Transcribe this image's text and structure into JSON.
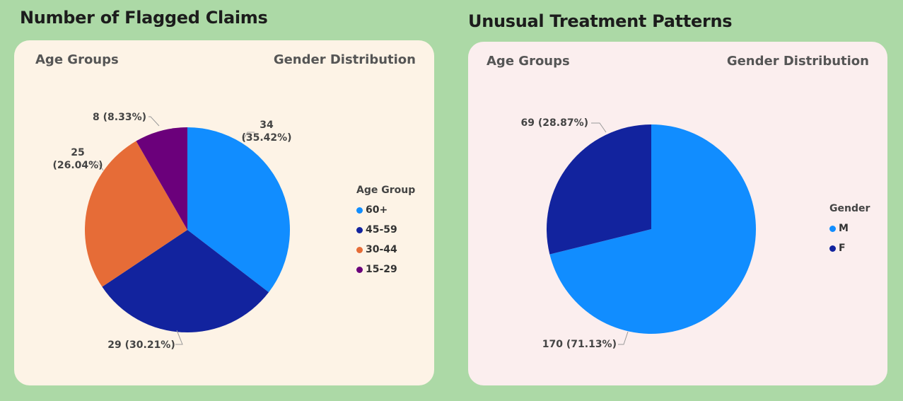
{
  "left_panel": {
    "title": "Number of Flagged Claims",
    "tabs": [
      "Age Groups",
      "Gender Distribution"
    ]
  },
  "right_panel": {
    "title": "Unusual Treatment Patterns",
    "tabs": [
      "Age Groups",
      "Gender Distribution"
    ]
  },
  "chart_data": [
    {
      "type": "pie",
      "title": "Number of Flagged Claims",
      "legend_title": "Age Group",
      "legend_position": "right",
      "categories": [
        "60+",
        "45-59",
        "30-44",
        "15-29"
      ],
      "values": [
        34,
        29,
        25,
        8
      ],
      "labels": [
        [
          "34",
          "(35.42%)"
        ],
        [
          "29 (30.21%)"
        ],
        [
          "25",
          "(26.04%)"
        ],
        [
          "8 (8.33%)"
        ]
      ],
      "colors": [
        "#118dff",
        "#12239e",
        "#e66c37",
        "#6b007b"
      ]
    },
    {
      "type": "pie",
      "title": "Unusual Treatment Patterns",
      "legend_title": "Gender",
      "legend_position": "right",
      "categories": [
        "M",
        "F"
      ],
      "values": [
        170,
        69
      ],
      "labels": [
        [
          "170 (71.13%)"
        ],
        [
          "69 (28.87%)"
        ]
      ],
      "colors": [
        "#118dff",
        "#12239e"
      ]
    }
  ]
}
